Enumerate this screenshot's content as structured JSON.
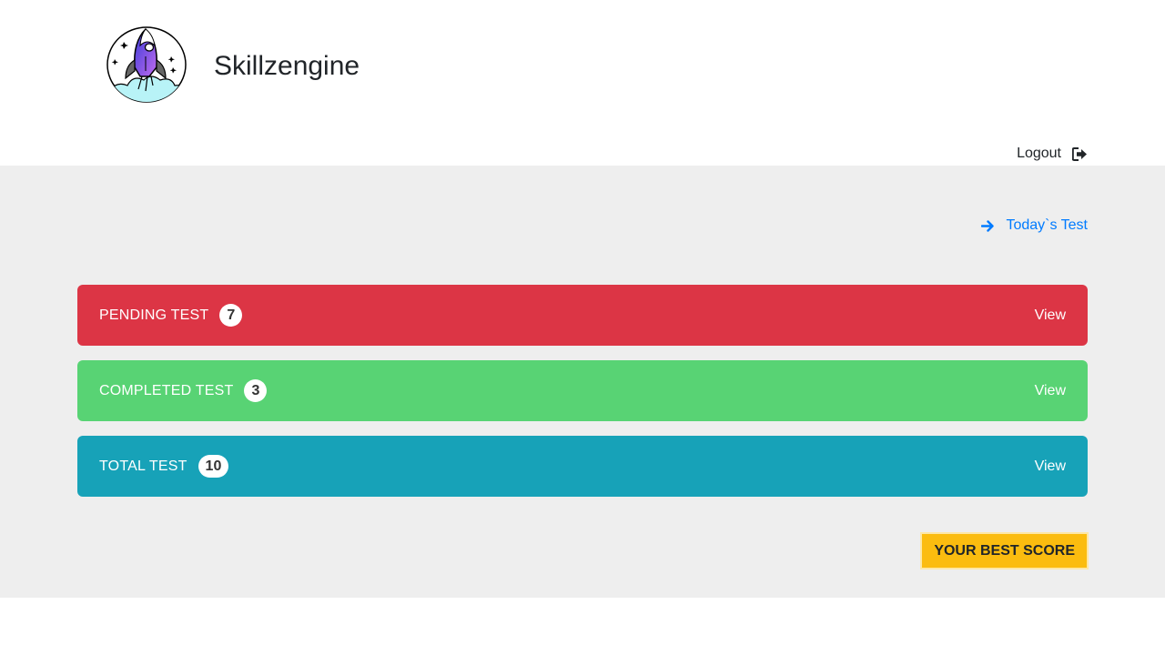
{
  "header": {
    "brand": "Skillzengine",
    "logout_label": "Logout",
    "logo_icon": "rocket-logo",
    "logout_icon": "sign-out-icon"
  },
  "main": {
    "today_link": "Today`s Test",
    "today_icon": "arrow-right-icon",
    "cards": [
      {
        "label": "PENDING TEST",
        "count": "7",
        "action": "View",
        "color": "#dc3545"
      },
      {
        "label": "COMPLETED TEST",
        "count": "3",
        "action": "View",
        "color": "#58d374"
      },
      {
        "label": "TOTAL TEST",
        "count": "10",
        "action": "View",
        "color": "#17a2b8"
      }
    ],
    "best_score_label": "YOUR BEST SCORE",
    "best_score_color": "#fbbc0f",
    "link_color": "#007bff",
    "background": "#eeeeee"
  }
}
